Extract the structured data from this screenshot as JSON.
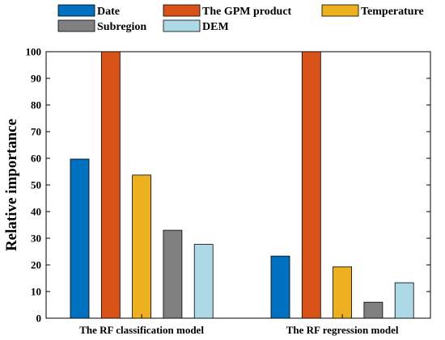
{
  "chart_data": {
    "type": "bar",
    "ylabel": "Relative importance",
    "xlabel": "",
    "ylim": [
      0,
      100
    ],
    "yticks": [
      0,
      10,
      20,
      30,
      40,
      50,
      60,
      70,
      80,
      90,
      100
    ],
    "categories": [
      "The RF classification model",
      "The RF regression model"
    ],
    "series": [
      {
        "name": "Date",
        "color": "#0070c0",
        "values": [
          59.7,
          23.3
        ]
      },
      {
        "name": "The GPM product",
        "color": "#d95319",
        "values": [
          100,
          100
        ]
      },
      {
        "name": "Temperature",
        "color": "#edb120",
        "values": [
          53.7,
          19.3
        ]
      },
      {
        "name": "Subregion",
        "color": "#808080",
        "values": [
          33.0,
          6.0
        ]
      },
      {
        "name": "DEM",
        "color": "#add8e6",
        "values": [
          27.7,
          13.3
        ]
      }
    ],
    "grid": false,
    "legend_position": "top"
  }
}
